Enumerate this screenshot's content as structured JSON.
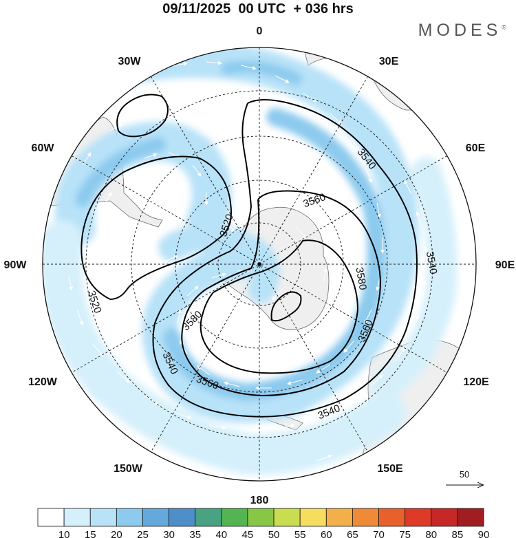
{
  "header": {
    "title": "09/11/2025  00 UTC  + 036 hrs",
    "brand": "MODES",
    "brand_mark": "©"
  },
  "map": {
    "projection": "south-polar-stereographic",
    "longitude_labels": [
      "0",
      "30E",
      "60E",
      "90E",
      "120E",
      "150E",
      "180",
      "150W",
      "120W",
      "90W",
      "60W",
      "30W"
    ],
    "contour_labels": [
      "3520",
      "3520",
      "3540",
      "3540",
      "3540",
      "3540",
      "3560",
      "3560",
      "3560",
      "3580",
      "3580"
    ],
    "reference_vector_label": "50"
  },
  "colorbar": {
    "labels": [
      "10",
      "15",
      "20",
      "25",
      "30",
      "35",
      "40",
      "45",
      "50",
      "55",
      "60",
      "65",
      "70",
      "75",
      "80",
      "85",
      "90"
    ],
    "colors": [
      "#ffffff",
      "#d6f0fb",
      "#b8e2f8",
      "#8ccaee",
      "#65a9dc",
      "#4f8fc9",
      "#49a383",
      "#52b552",
      "#88c646",
      "#c9dd50",
      "#f7dd5d",
      "#f3b04a",
      "#ee8a38",
      "#e8602c",
      "#dd3a27",
      "#c52826",
      "#a01e22"
    ]
  },
  "style": {
    "land_color": "#f0f0f0",
    "coast_color": "#555555",
    "contour_color": "#000000",
    "vector_color": "#ffffff"
  }
}
